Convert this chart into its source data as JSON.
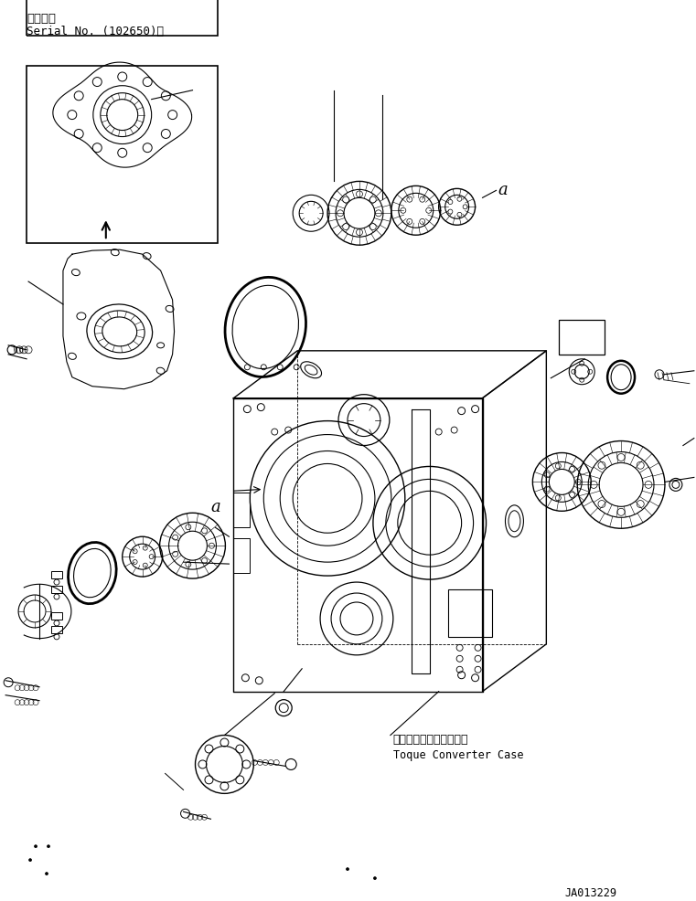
{
  "title_jp": "適用号機",
  "title_serial": "Serial No. (102650)～",
  "label_a": "a",
  "label_converter_jp": "トルクコンバータケース",
  "label_converter_en": "Toque Converter Case",
  "drawing_id": "JA013229",
  "bg_color": "#ffffff",
  "line_color": "#000000",
  "figure_width": 7.61,
  "figure_height": 9.87,
  "dpi": 100
}
